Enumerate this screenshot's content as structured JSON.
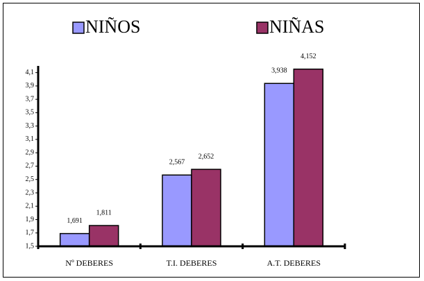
{
  "chart_data": {
    "type": "bar",
    "categories": [
      "Nº DEBERES",
      "T.I. DEBERES",
      "A.T. DEBERES"
    ],
    "series": [
      {
        "name": "NIÑOS",
        "color": "#9999ff",
        "values": [
          1.691,
          2.567,
          3.938
        ],
        "value_labels": [
          "1,691",
          "2,567",
          "3,938"
        ]
      },
      {
        "name": "NIÑAS",
        "color": "#993366",
        "values": [
          1.811,
          2.652,
          4.152
        ],
        "value_labels": [
          "1,811",
          "2,652",
          "4,152"
        ]
      }
    ],
    "ylim": [
      1.5,
      4.2
    ],
    "yticks": [
      {
        "value": 1.5,
        "label": "1,5"
      },
      {
        "value": 1.7,
        "label": "1,7"
      },
      {
        "value": 1.9,
        "label": "1,9"
      },
      {
        "value": 2.1,
        "label": "2,1"
      },
      {
        "value": 2.3,
        "label": "2,3"
      },
      {
        "value": 2.5,
        "label": "2,5"
      },
      {
        "value": 2.7,
        "label": "2,7"
      },
      {
        "value": 2.9,
        "label": "2,9"
      },
      {
        "value": 3.1,
        "label": "3,1"
      },
      {
        "value": 3.3,
        "label": "3,3"
      },
      {
        "value": 3.5,
        "label": "3,5"
      },
      {
        "value": 3.7,
        "label": "3,7"
      },
      {
        "value": 3.9,
        "label": "3,9"
      },
      {
        "value": 4.1,
        "label": "4,1"
      }
    ],
    "legend": "top"
  }
}
